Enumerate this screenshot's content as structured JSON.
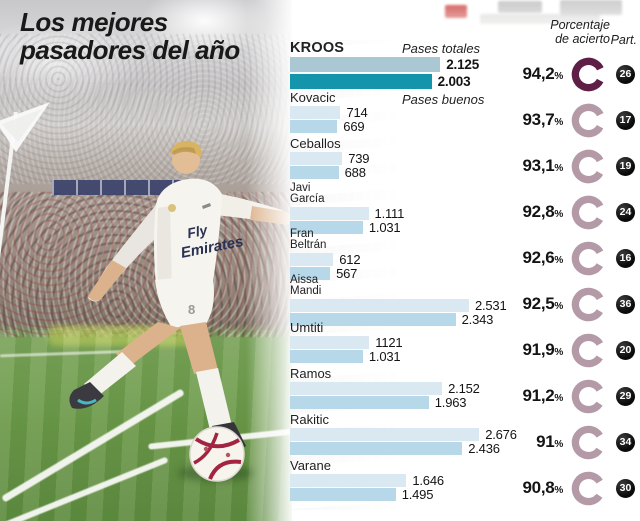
{
  "title": {
    "line1": "Los mejores",
    "line2": "pasadores del año"
  },
  "header": {
    "pct_label_line1": "Porcentaje",
    "pct_label_line2": "de acierto",
    "part_label": "Part.",
    "percent_sign": "%"
  },
  "legend": {
    "totales": "Pases totales",
    "buenos": "Pases buenos"
  },
  "colors": {
    "bar_totales": "#d9e8f1",
    "bar_buenos": "#b6d8e8",
    "bar_totales_highlight": "#a9c8d4",
    "bar_buenos_highlight": "#1595ab",
    "ring": "#b49aa7",
    "ring_highlight": "#5e1e45",
    "badge_bg": "#0d0d0d",
    "badge_text": "#ffffff",
    "title_text": "#191919"
  },
  "photo": {
    "description": "Toni Kroos in white Real Madrid kit taking a corner kick in a stadium",
    "shirt_line1": "Fly",
    "shirt_line2": "Emirates",
    "shorts_number": "8"
  },
  "chart_data": {
    "type": "bar",
    "title": "Los mejores pasadores del año",
    "orientation": "horizontal",
    "xlim": [
      0,
      2700
    ],
    "series": [
      {
        "name": "Pases totales",
        "values": [
          2125,
          714,
          739,
          1111,
          612,
          2531,
          1121,
          2152,
          2676,
          1646
        ]
      },
      {
        "name": "Pases buenos",
        "values": [
          2003,
          669,
          688,
          1031,
          567,
          2343,
          1031,
          1963,
          2436,
          1495
        ]
      }
    ],
    "categories": [
      "KROOS",
      "Kovacic",
      "Ceballos",
      "Javi García",
      "Fran Beltrán",
      "Aissa Mandi",
      "Umtiti",
      "Ramos",
      "Rakitic",
      "Varane"
    ],
    "pct_acierto": [
      94.2,
      93.7,
      93.1,
      92.8,
      92.6,
      92.5,
      91.9,
      91.2,
      91,
      90.8
    ],
    "partidos": [
      26,
      17,
      19,
      24,
      16,
      36,
      20,
      29,
      34,
      30
    ],
    "players": [
      {
        "name": "KROOS",
        "name_lines": [
          "KROOS"
        ],
        "totales": "2.125",
        "buenos": "2.003",
        "totales_num": 2125,
        "buenos_num": 2003,
        "pct": "94,2",
        "pct_num": 94.2,
        "part": "26",
        "highlight": true
      },
      {
        "name": "Kovacic",
        "name_lines": [
          "Kovacic"
        ],
        "totales": "714",
        "buenos": "669",
        "totales_num": 714,
        "buenos_num": 669,
        "pct": "93,7",
        "pct_num": 93.7,
        "part": "17",
        "highlight": false
      },
      {
        "name": "Ceballos",
        "name_lines": [
          "Ceballos"
        ],
        "totales": "739",
        "buenos": "688",
        "totales_num": 739,
        "buenos_num": 688,
        "pct": "93,1",
        "pct_num": 93.1,
        "part": "19",
        "highlight": false
      },
      {
        "name": "Javi García",
        "name_lines": [
          "Javi",
          "García"
        ],
        "totales": "1.111",
        "buenos": "1.031",
        "totales_num": 1111,
        "buenos_num": 1031,
        "pct": "92,8",
        "pct_num": 92.8,
        "part": "24",
        "highlight": false
      },
      {
        "name": "Fran Beltrán",
        "name_lines": [
          "Fran",
          "Beltrán"
        ],
        "totales": "612",
        "buenos": "567",
        "totales_num": 612,
        "buenos_num": 567,
        "pct": "92,6",
        "pct_num": 92.6,
        "part": "16",
        "highlight": false
      },
      {
        "name": "Aissa Mandi",
        "name_lines": [
          "Aissa",
          "Mandi"
        ],
        "totales": "2.531",
        "buenos": "2.343",
        "totales_num": 2531,
        "buenos_num": 2343,
        "pct": "92,5",
        "pct_num": 92.5,
        "part": "36",
        "highlight": false
      },
      {
        "name": "Umtiti",
        "name_lines": [
          "Umtiti"
        ],
        "totales": "1121",
        "buenos": "1.031",
        "totales_num": 1121,
        "buenos_num": 1031,
        "pct": "91,9",
        "pct_num": 91.9,
        "part": "20",
        "highlight": false
      },
      {
        "name": "Ramos",
        "name_lines": [
          "Ramos"
        ],
        "totales": "2.152",
        "buenos": "1.963",
        "totales_num": 2152,
        "buenos_num": 1963,
        "pct": "91,2",
        "pct_num": 91.2,
        "part": "29",
        "highlight": false
      },
      {
        "name": "Rakitic",
        "name_lines": [
          "Rakitic"
        ],
        "totales": "2.676",
        "buenos": "2.436",
        "totales_num": 2676,
        "buenos_num": 2436,
        "pct": "91",
        "pct_num": 91,
        "part": "34",
        "highlight": false
      },
      {
        "name": "Varane",
        "name_lines": [
          "Varane"
        ],
        "totales": "1.646",
        "buenos": "1.495",
        "totales_num": 1646,
        "buenos_num": 1495,
        "pct": "90,8",
        "pct_num": 90.8,
        "part": "30",
        "highlight": false
      }
    ]
  }
}
